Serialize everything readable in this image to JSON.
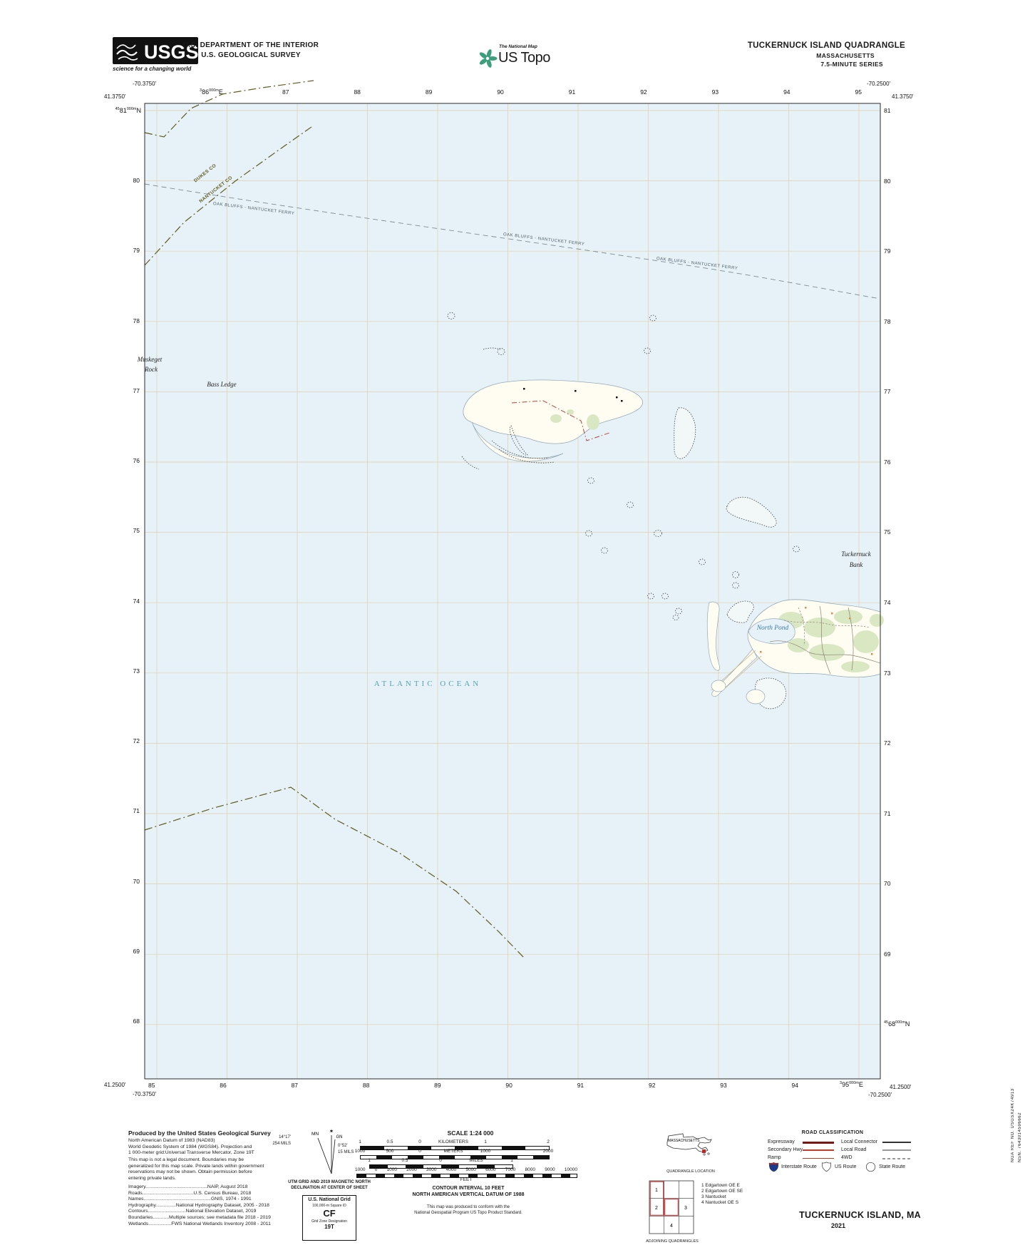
{
  "header": {
    "usgs": {
      "logo_text": "USGS",
      "tagline": "science for a changing world"
    },
    "department_line1": "U.S. DEPARTMENT OF THE INTERIOR",
    "department_line2": "U.S. GEOLOGICAL SURVEY",
    "ustopo": {
      "kicker": "The National Map",
      "title": "US Topo"
    },
    "quadrangle": {
      "title": "TUCKERNUCK ISLAND QUADRANGLE",
      "state": "MASSACHUSETTS",
      "series": "7.5-MINUTE SERIES"
    }
  },
  "map": {
    "corners": {
      "nw_lat": "41.3750'",
      "nw_lon": "-70.3750'",
      "ne_lat": "41.3750'",
      "ne_lon": "-70.2500'",
      "sw_lat": "41.2500'",
      "sw_lon": "-70.3750'",
      "se_lat": "41.2500'",
      "se_lon": "-70.2500'"
    },
    "utm": {
      "top_full": {
        "sup1": "3",
        "main": "86",
        "sup2": "000m",
        "dir": "E"
      },
      "bottom_full": {
        "sup1": "3",
        "main": "95",
        "sup2": "000m",
        "dir": "E"
      },
      "left_full": {
        "sup1": "45",
        "main": "81",
        "sup2": "000m",
        "dir": "N"
      },
      "right_full": {
        "sup1": "45",
        "main": "68",
        "sup2": "000m",
        "dir": "N"
      },
      "top_ticks": [
        "87",
        "88",
        "89",
        "90",
        "91",
        "92",
        "93",
        "94",
        "95"
      ],
      "bottom_ticks": [
        "85",
        "86",
        "87",
        "88",
        "89",
        "90",
        "91",
        "92",
        "93",
        "94"
      ],
      "left_ticks": [
        "80",
        "79",
        "78",
        "77",
        "76",
        "75",
        "74",
        "73",
        "72",
        "71",
        "70",
        "69",
        "68"
      ],
      "right_ticks": [
        "81",
        "80",
        "79",
        "78",
        "77",
        "76",
        "75",
        "74",
        "73",
        "72",
        "71",
        "70",
        "69"
      ]
    },
    "place_labels": {
      "ocean": "ATLANTIC OCEAN",
      "muskeget_rock_line1": "Muskeget",
      "muskeget_rock_line2": "Rock",
      "bass_ledge": "Bass Ledge",
      "tuckernuck_bank_line1": "Tuckernuck",
      "tuckernuck_bank_line2": "Bank",
      "north_pond": "North Pond"
    },
    "boundary_labels": {
      "dukes_co": "DUKES CO",
      "nantucket_co": "NANTUCKET CO"
    },
    "ferry_label": "OAK BLUFFS - NANTUCKET FERRY",
    "colors": {
      "water": "#e7f2f8",
      "land": "#fffdf2",
      "vegetation": "#d9e8c2",
      "grid_line": "#d9b778",
      "county_boundary": "#5f5a1e",
      "ferry_route": "#7c8b92",
      "municipal_boundary": "#b5443c",
      "ocean_label": "#55a3b1",
      "hydro_label": "#3a7ca8"
    }
  },
  "footer": {
    "produced_by": "Produced by the United States Geological Survey",
    "datum_lines": [
      "North American Datum of 1983 (NAD83)",
      "World Geodetic System of 1984 (WGS84).  Projection and",
      "1 000-meter grid:Universal Transverse Mercator, Zone 19T"
    ],
    "legal_lines": [
      "This map is not a legal document. Boundaries may be",
      "generalized for this map scale. Private lands within government",
      "reservations may not be shown. Obtain permission before",
      "entering private lands."
    ],
    "credit_lines": [
      "Imagery..............................................NAIP, August 2018",
      "Roads......................................U.S. Census Bureau, 2018",
      "Names..................................................GNIS, 1974 - 1991",
      "Hydrography...............National Hydrography Dataset, 2005 - 2018",
      "Contours............................National Elevation Dataset, 2019",
      "Boundaries............Multiple sources; see metadata file 2018 - 2019",
      "Wetlands.................FWS National Wetlands Inventory 2008 - 2011"
    ],
    "declination": {
      "mn_label": "MN",
      "gn_label": "GN",
      "star": "✶",
      "mn_degrees": "14°17'",
      "mn_mils": "254 MILS",
      "gn_degrees": "0°52'",
      "gn_mils": "15 MILS",
      "caption_line1": "UTM GRID AND 2019 MAGNETIC NORTH",
      "caption_line2": "DECLINATION AT CENTER OF SHEET"
    },
    "usng": {
      "title": "U.S. National Grid",
      "square_id_label": "100,000-m Square ID",
      "square_id": "CF",
      "zone_label": "Grid Zone Designation",
      "zone": "19T"
    },
    "scale": {
      "title": "SCALE 1:24 000",
      "km_labels": [
        "1",
        "0.5",
        "0",
        "KILOMETERS",
        "1",
        "2"
      ],
      "m_labels": [
        "1000",
        "500",
        "0",
        "METERS",
        "1000",
        "2000"
      ],
      "mi_labels": [
        "1",
        "0.5",
        "0",
        "1"
      ],
      "mi_word": "MILES",
      "ft_labels": [
        "1000",
        "0",
        "1000",
        "2000",
        "3000",
        "4000",
        "5000",
        "6000",
        "7000",
        "8000",
        "9000",
        "10000"
      ],
      "ft_word": "FEET"
    },
    "contour_line1": "CONTOUR INTERVAL 10 FEET",
    "contour_line2": "NORTH AMERICAN VERTICAL DATUM OF 1988",
    "standard_line1": "This map was produced to conform with the",
    "standard_line2": "National Geospatial Program US Topo Product Standard.",
    "locator": {
      "state_label": "MASSACHUSETTS",
      "caption": "QUADRANGLE LOCATION"
    },
    "road_classification": {
      "title": "ROAD CLASSIFICATION",
      "expressway": "Expressway",
      "secondary": "Secondary Hwy",
      "ramp": "Ramp",
      "local_connector": "Local Connector",
      "local_road": "Local Road",
      "fourwd": "4WD",
      "interstate": "Interstate Route",
      "us_route": "US Route",
      "state_route": "State Route"
    },
    "adjoining": {
      "numbers": [
        "1",
        "2",
        "3",
        "4"
      ],
      "items": [
        "1 Edgartown OE E",
        "2 Edgartown OE SE",
        "3 Nantucket",
        "4 Nantucket OE S"
      ],
      "caption": "ADJOINING QUADRANGLES"
    },
    "title_block": {
      "name": "TUCKERNUCK ISLAND,  MA",
      "year": "2021"
    },
    "margin_codes": {
      "nsn": "NSN. 7643014596662",
      "nga": "NGA REF NO. USGSX24K74913"
    }
  }
}
